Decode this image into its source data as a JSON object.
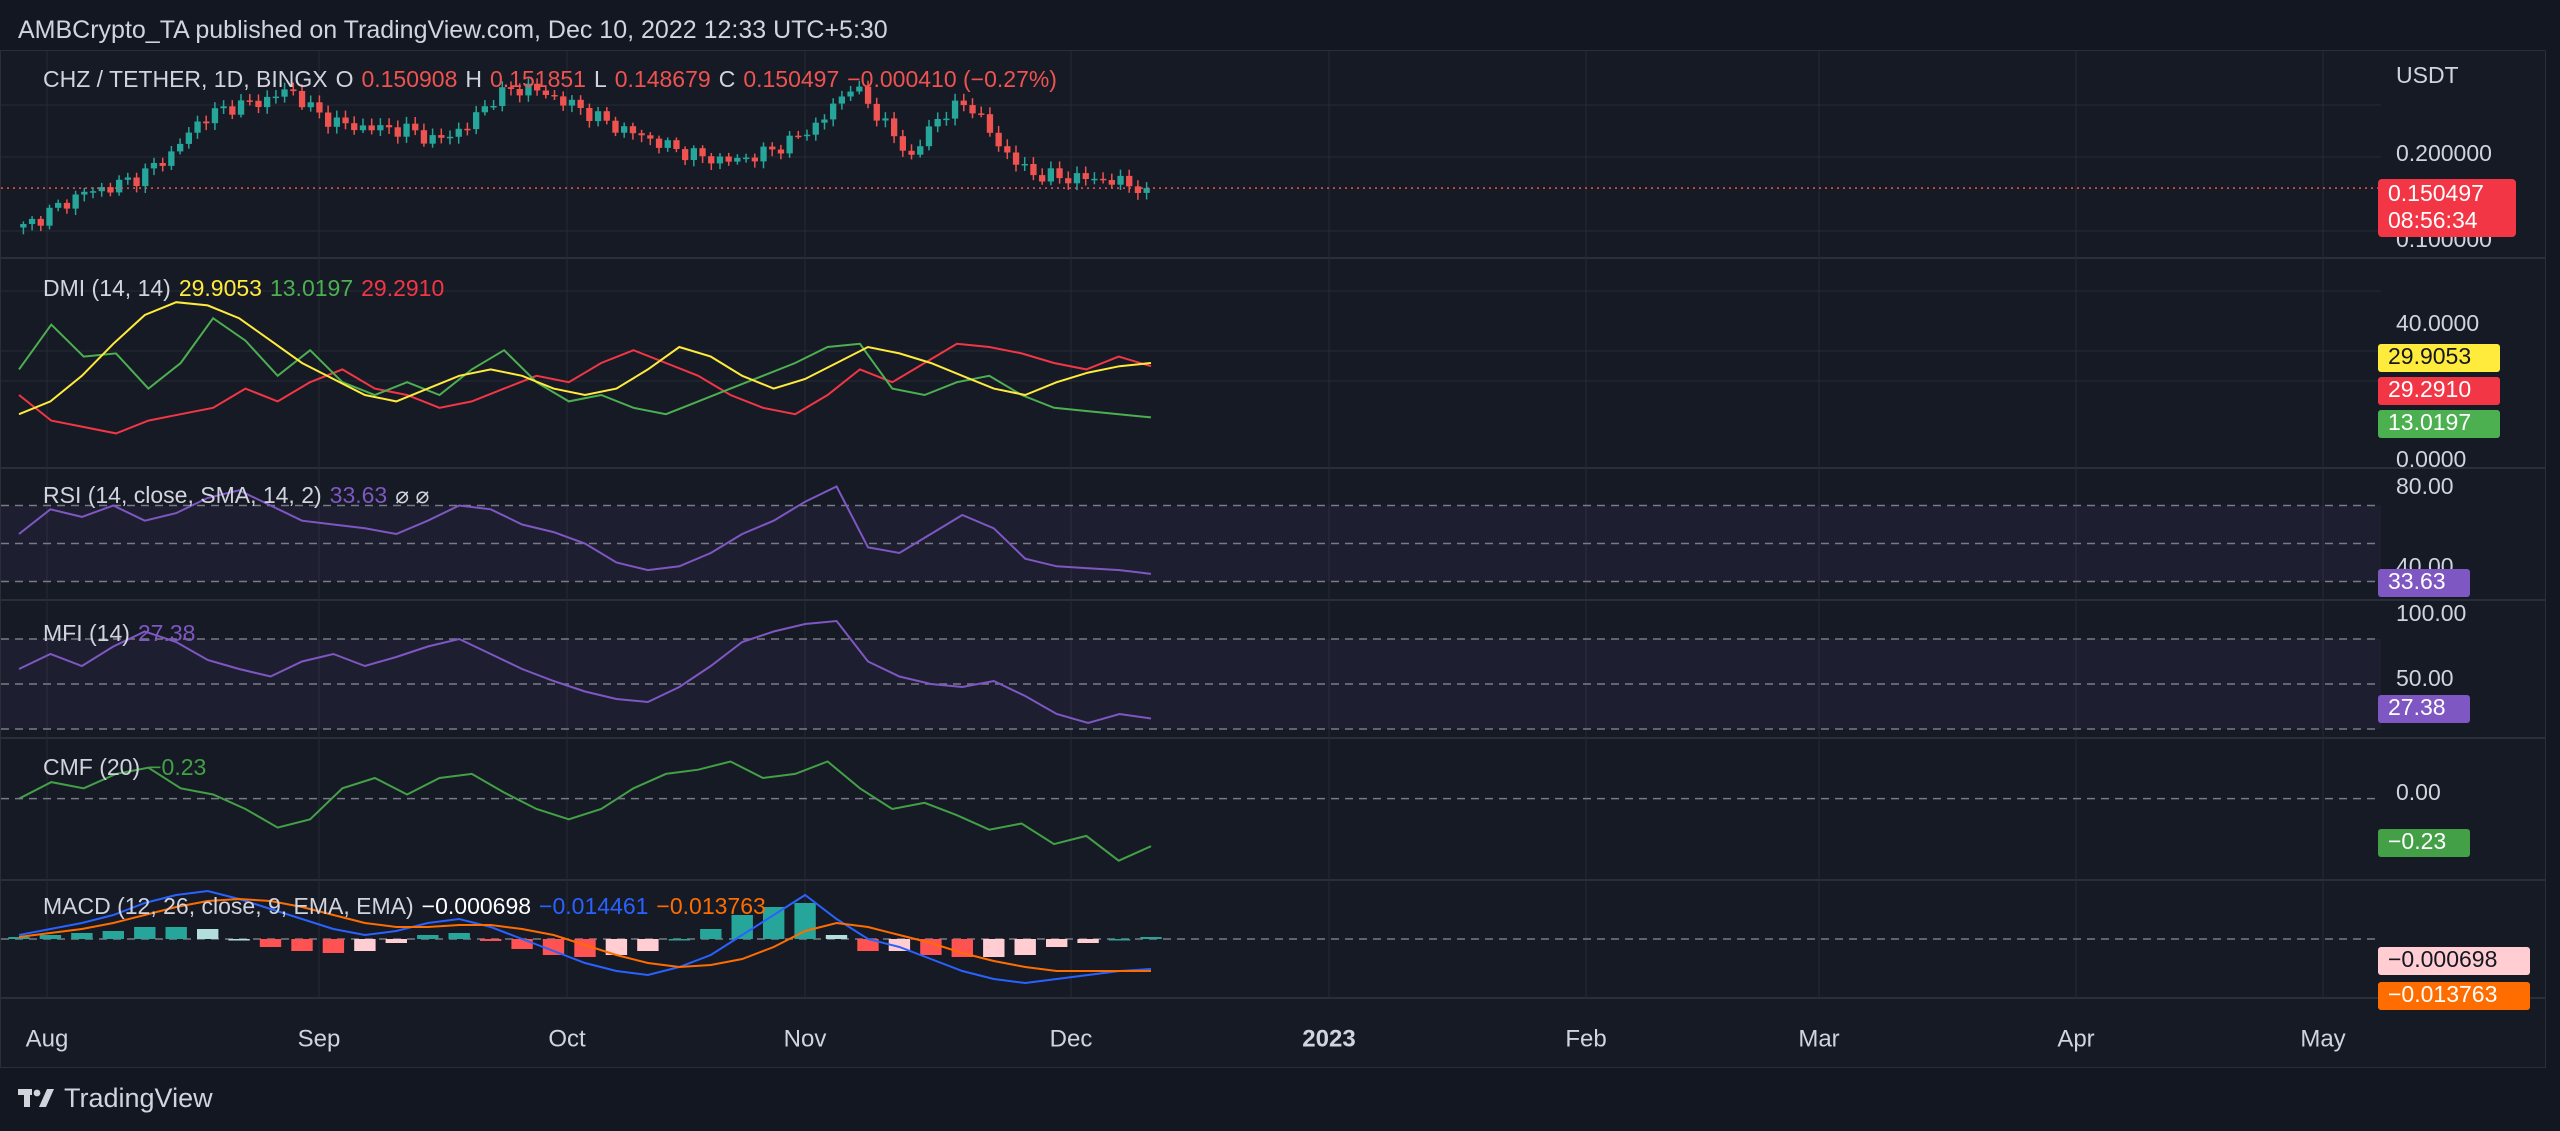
{
  "header": {
    "attribution": "AMBCrypto_TA published on TradingView.com, Dec 10, 2022 12:33 UTC+5:30"
  },
  "footer": {
    "brand": "TradingView",
    "logo_icon": "tradingview-logo-icon"
  },
  "colors": {
    "background": "#131722",
    "pane": "#161a25",
    "grid": "#262a35",
    "text": "#d1d4dc",
    "up": "#26a69a",
    "down": "#ef5350",
    "dmi_adx": "#ffeb3b",
    "dmi_plus": "#4caf50",
    "dmi_minus": "#f23645",
    "rsi": "#7e57c2",
    "mfi": "#7e57c2",
    "cmf": "#43a047",
    "macd": "#2962ff",
    "signal": "#ff6d00",
    "hist_up_strong": "#26a69a",
    "hist_up_weak": "#b2dfdb",
    "hist_down_strong": "#ff5252",
    "hist_down_weak": "#ffcdd2"
  },
  "chart_data": {
    "type": "candlestick-with-indicators",
    "symbol": "CHZ / TETHER, 1D, BINGX",
    "currency": "USDT",
    "ohlc_legend": {
      "O": "0.150908",
      "H": "0.151851",
      "L": "0.148679",
      "C": "0.150497",
      "change": "−0.000410 (−0.27%)"
    },
    "time_axis": [
      "Aug",
      "Sep",
      "Oct",
      "Nov",
      "Dec",
      "2023",
      "Feb",
      "Mar",
      "Apr",
      "May"
    ],
    "price": {
      "ticks": [
        "0.200000",
        "0.100000"
      ],
      "ylim": [
        0.08,
        0.3
      ],
      "last_price": "0.150497",
      "countdown": "08:56:34",
      "close_path": [
        0.105,
        0.125,
        0.145,
        0.152,
        0.165,
        0.19,
        0.23,
        0.245,
        0.25,
        0.265,
        0.235,
        0.222,
        0.22,
        0.218,
        0.205,
        0.222,
        0.258,
        0.268,
        0.255,
        0.24,
        0.222,
        0.21,
        0.196,
        0.186,
        0.182,
        0.19,
        0.205,
        0.228,
        0.27,
        0.232,
        0.185,
        0.235,
        0.25,
        0.2,
        0.168,
        0.163,
        0.162,
        0.158,
        0.15
      ]
    },
    "dmi": {
      "label": "DMI (14, 14)",
      "values": {
        "adx": "29.9053",
        "plus_di": "13.0197",
        "minus_di": "29.2910"
      },
      "ticks": [
        "40.0000",
        "0.0000"
      ],
      "ylim": [
        0,
        60
      ],
      "adx": [
        14,
        18,
        26,
        36,
        45,
        49,
        48,
        44,
        37,
        30,
        25,
        20,
        18,
        22,
        26,
        28,
        26,
        22,
        20,
        22,
        28,
        35,
        32,
        26,
        22,
        25,
        30,
        35,
        33,
        30,
        26,
        22,
        20,
        24,
        27,
        29,
        30
      ],
      "plus_di": [
        28,
        42,
        32,
        33,
        22,
        30,
        44,
        37,
        26,
        34,
        24,
        20,
        24,
        20,
        28,
        34,
        24,
        18,
        20,
        16,
        14,
        18,
        22,
        26,
        30,
        35,
        36,
        22,
        20,
        24,
        26,
        20,
        16,
        15,
        14,
        13
      ],
      "minus_di": [
        20,
        12,
        10,
        8,
        12,
        14,
        16,
        22,
        18,
        24,
        28,
        22,
        20,
        16,
        18,
        22,
        26,
        24,
        30,
        34,
        30,
        26,
        20,
        16,
        14,
        20,
        28,
        24,
        30,
        36,
        35,
        33,
        30,
        28,
        32,
        29
      ]
    },
    "rsi": {
      "label": "RSI (14, close, SMA, 14, 2)",
      "value": "33.63",
      "extras": "⌀ ⌀",
      "ticks": [
        "80.00",
        "40.00"
      ],
      "ylim": [
        25,
        85
      ],
      "bands": [
        30,
        50,
        70
      ],
      "values": [
        55,
        68,
        64,
        70,
        62,
        66,
        74,
        78,
        70,
        62,
        60,
        58,
        55,
        62,
        70,
        68,
        60,
        56,
        50,
        40,
        36,
        38,
        45,
        55,
        62,
        72,
        80,
        48,
        45,
        55,
        65,
        58,
        42,
        38,
        37,
        36,
        34
      ]
    },
    "mfi": {
      "label": "MFI (14)",
      "value": "27.38",
      "ticks": [
        "100.00",
        "50.00"
      ],
      "ylim": [
        20,
        100
      ],
      "bands": [
        20,
        50,
        80
      ],
      "values": [
        60,
        70,
        62,
        75,
        85,
        78,
        66,
        60,
        55,
        65,
        70,
        62,
        68,
        75,
        80,
        70,
        60,
        52,
        45,
        40,
        38,
        48,
        62,
        78,
        85,
        90,
        92,
        65,
        55,
        50,
        48,
        52,
        42,
        30,
        24,
        30,
        27
      ]
    },
    "cmf": {
      "label": "CMF (20)",
      "value": "−0.23",
      "ticks": [
        "0.00"
      ],
      "ylim": [
        -0.35,
        0.25
      ],
      "zero": 0,
      "values": [
        0.0,
        0.08,
        0.05,
        0.12,
        0.15,
        0.05,
        0.02,
        -0.05,
        -0.14,
        -0.1,
        0.05,
        0.1,
        0.02,
        0.1,
        0.12,
        0.03,
        -0.05,
        -0.1,
        -0.05,
        0.05,
        0.12,
        0.14,
        0.18,
        0.1,
        0.12,
        0.18,
        0.05,
        -0.05,
        -0.02,
        -0.08,
        -0.15,
        -0.12,
        -0.22,
        -0.18,
        -0.3,
        -0.23
      ]
    },
    "macd": {
      "label": "MACD (12, 26, close, 9, EMA, EMA)",
      "values": {
        "histogram": "−0.000698",
        "macd": "−0.014461",
        "signal": "−0.013763"
      },
      "ylim": [
        -0.025,
        0.025
      ],
      "zero": 0,
      "macd": [
        0.002,
        0.005,
        0.008,
        0.012,
        0.018,
        0.022,
        0.024,
        0.02,
        0.015,
        0.01,
        0.005,
        0.002,
        0.004,
        0.008,
        0.01,
        0.006,
        0.0,
        -0.006,
        -0.012,
        -0.016,
        -0.018,
        -0.014,
        -0.008,
        0.002,
        0.012,
        0.022,
        0.01,
        0.0,
        -0.004,
        -0.01,
        -0.016,
        -0.02,
        -0.022,
        -0.02,
        -0.018,
        -0.016,
        -0.015
      ],
      "signal": [
        0.001,
        0.003,
        0.005,
        0.008,
        0.012,
        0.016,
        0.019,
        0.02,
        0.019,
        0.016,
        0.012,
        0.008,
        0.006,
        0.006,
        0.007,
        0.007,
        0.005,
        0.002,
        -0.003,
        -0.008,
        -0.012,
        -0.014,
        -0.013,
        -0.01,
        -0.004,
        0.004,
        0.008,
        0.006,
        0.002,
        -0.002,
        -0.007,
        -0.011,
        -0.014,
        -0.016,
        -0.016,
        -0.016,
        -0.016
      ],
      "histogram": [
        0.001,
        0.002,
        0.003,
        0.004,
        0.006,
        0.006,
        0.005,
        0.0,
        -0.004,
        -0.006,
        -0.007,
        -0.006,
        -0.002,
        0.002,
        0.003,
        -0.001,
        -0.005,
        -0.008,
        -0.009,
        -0.008,
        -0.006,
        0.0,
        0.005,
        0.012,
        0.016,
        0.018,
        0.002,
        -0.006,
        -0.006,
        -0.008,
        -0.009,
        -0.009,
        -0.008,
        -0.004,
        -0.002,
        0.0,
        0.001
      ]
    }
  }
}
